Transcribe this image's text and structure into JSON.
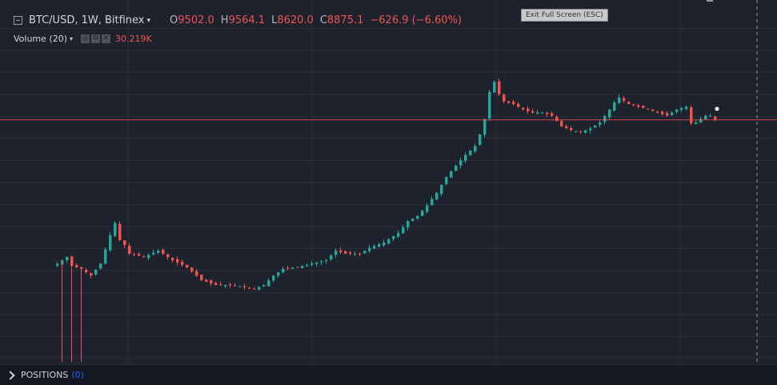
{
  "header": {
    "symbol": "BTC/USD, 1W, Bitfinex",
    "open_key": "O",
    "open": "9502.0",
    "high_key": "H",
    "high": "9564.1",
    "low_key": "L",
    "low": "8620.0",
    "close_key": "C",
    "close": "8875.1",
    "change": "−626.9 (−6.60%)"
  },
  "volume": {
    "label": "Volume (20)",
    "value": "30.219K",
    "buttons": [
      "◎",
      "⚙",
      "✕"
    ]
  },
  "tooltip": {
    "fullscreen": "Exit Full Screen (ESC)"
  },
  "bottom": {
    "positions_label": "POSITIONS",
    "positions_count": "(0)"
  },
  "colors": {
    "up": "#26a69a",
    "down": "#ef5350",
    "background": "#1e222d",
    "grid": "#2a2e39",
    "price_line": "#ef5350"
  },
  "chart_data": {
    "type": "candlestick",
    "symbol": "BTC/USD",
    "interval": "1W",
    "exchange": "Bitfinex",
    "last": {
      "open": 9502.0,
      "high": 9564.1,
      "low": 8620.0,
      "close": 8875.1,
      "change": -626.9,
      "change_pct": -6.6
    },
    "ylim": [
      0,
      20000
    ],
    "close_path": [
      [
        0,
        850
      ],
      [
        2,
        950
      ],
      [
        3,
        820
      ],
      [
        5,
        780
      ],
      [
        7,
        700
      ],
      [
        9,
        850
      ],
      [
        11,
        1350
      ],
      [
        12,
        1650
      ],
      [
        13,
        1250
      ],
      [
        14,
        1150
      ],
      [
        15,
        1000
      ],
      [
        18,
        950
      ],
      [
        21,
        1050
      ],
      [
        24,
        900
      ],
      [
        27,
        800
      ],
      [
        30,
        650
      ],
      [
        33,
        600
      ],
      [
        36,
        600
      ],
      [
        39,
        580
      ],
      [
        41,
        560
      ],
      [
        43,
        600
      ],
      [
        45,
        700
      ],
      [
        47,
        780
      ],
      [
        50,
        800
      ],
      [
        53,
        850
      ],
      [
        56,
        900
      ],
      [
        58,
        1050
      ],
      [
        60,
        1000
      ],
      [
        63,
        1000
      ],
      [
        65,
        1100
      ],
      [
        68,
        1200
      ],
      [
        71,
        1400
      ],
      [
        73,
        1700
      ],
      [
        75,
        1850
      ],
      [
        77,
        2200
      ],
      [
        79,
        2700
      ],
      [
        81,
        3500
      ],
      [
        83,
        4200
      ],
      [
        85,
        5000
      ],
      [
        87,
        5800
      ],
      [
        88,
        7000
      ],
      [
        89,
        9000
      ],
      [
        90,
        14000
      ],
      [
        91,
        16500
      ],
      [
        92,
        13500
      ],
      [
        93,
        12000
      ],
      [
        95,
        11500
      ],
      [
        97,
        10500
      ],
      [
        99,
        10000
      ],
      [
        101,
        10000
      ],
      [
        103,
        9500
      ],
      [
        105,
        8000
      ],
      [
        107,
        7500
      ],
      [
        109,
        7300
      ],
      [
        111,
        7700
      ],
      [
        113,
        8500
      ],
      [
        115,
        10500
      ],
      [
        116,
        11800
      ],
      [
        117,
        12800
      ],
      [
        119,
        11500
      ],
      [
        121,
        11000
      ],
      [
        123,
        10600
      ],
      [
        125,
        10000
      ],
      [
        127,
        9500
      ],
      [
        129,
        10500
      ],
      [
        131,
        11000
      ],
      [
        132,
        8400
      ],
      [
        133,
        8500
      ],
      [
        134,
        9000
      ],
      [
        135,
        9500
      ],
      [
        136,
        9502
      ],
      [
        137,
        8875.1
      ]
    ],
    "volume_last": "30.219K",
    "indicator": "Volume (20)"
  }
}
